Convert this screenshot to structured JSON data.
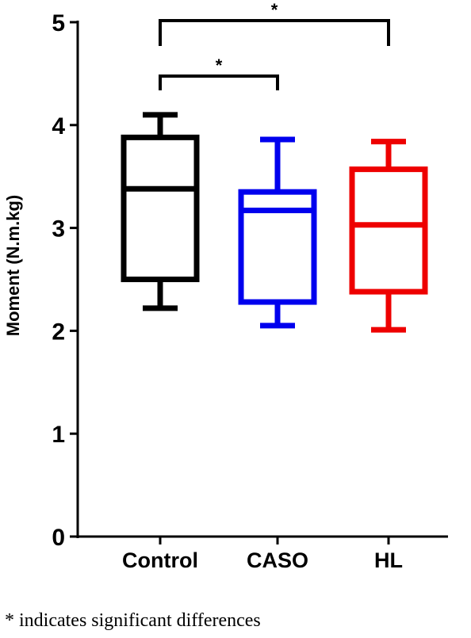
{
  "chart_data": {
    "type": "box",
    "ylabel": "Moment (N.m.kg)",
    "ylim": [
      0,
      5
    ],
    "yticks": [
      0,
      1,
      2,
      3,
      4,
      5
    ],
    "categories": [
      "Control",
      "CASO",
      "HL"
    ],
    "grid": false,
    "series": [
      {
        "category": "Control",
        "color": "#000000",
        "min": 2.22,
        "q1": 2.5,
        "median": 3.38,
        "q3": 3.88,
        "max": 4.1
      },
      {
        "category": "CASO",
        "color": "#0000ee",
        "min": 2.05,
        "q1": 2.28,
        "median": 3.17,
        "q3": 3.35,
        "max": 3.86
      },
      {
        "category": "HL",
        "color": "#ee0000",
        "min": 2.01,
        "q1": 2.38,
        "median": 3.03,
        "q3": 3.57,
        "max": 3.84
      }
    ],
    "significance": [
      {
        "from": "Control",
        "to": "CASO",
        "label": "*"
      },
      {
        "from": "Control",
        "to": "HL",
        "label": "*"
      }
    ]
  },
  "footnote": "* indicates significant differences"
}
